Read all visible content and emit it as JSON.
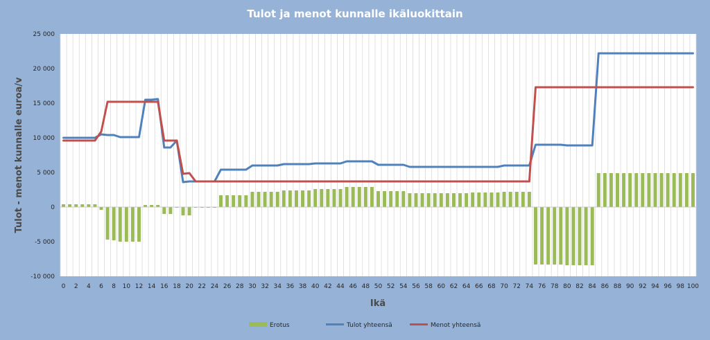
{
  "chart_data": {
    "type": "bar+line",
    "title": "Tulot ja menot kunnalle ikäluokittain",
    "xlabel": "Ikä",
    "ylabel": "Tulot - menot kunnalle euroa/v",
    "ylim": [
      -10000,
      25000
    ],
    "ytick_step": 5000,
    "y_tick_labels": [
      "-10 000",
      "-5 000",
      "0",
      "5 000",
      "10 000",
      "15 000",
      "20 000",
      "25 000"
    ],
    "x_tick_step": 2,
    "x": [
      0,
      1,
      2,
      3,
      4,
      5,
      6,
      7,
      8,
      9,
      10,
      11,
      12,
      13,
      14,
      15,
      16,
      17,
      18,
      19,
      20,
      21,
      22,
      23,
      24,
      25,
      26,
      27,
      28,
      29,
      30,
      31,
      32,
      33,
      34,
      35,
      36,
      37,
      38,
      39,
      40,
      41,
      42,
      43,
      44,
      45,
      46,
      47,
      48,
      49,
      50,
      51,
      52,
      53,
      54,
      55,
      56,
      57,
      58,
      59,
      60,
      61,
      62,
      63,
      64,
      65,
      66,
      67,
      68,
      69,
      70,
      71,
      72,
      73,
      74,
      75,
      76,
      77,
      78,
      79,
      80,
      81,
      82,
      83,
      84,
      85,
      86,
      87,
      88,
      89,
      90,
      91,
      92,
      93,
      94,
      95,
      96,
      97,
      98,
      99,
      100
    ],
    "grid": "vertical",
    "legend_position": "bottom",
    "series": [
      {
        "name": "Erotus",
        "type": "bar",
        "color": "#9bbb59",
        "values": [
          400,
          400,
          400,
          400,
          400,
          400,
          -400,
          -4700,
          -4800,
          -5000,
          -5000,
          -5000,
          -5000,
          300,
          300,
          300,
          -1000,
          -1000,
          -100,
          -1200,
          -1200,
          -100,
          -100,
          -100,
          -100,
          1700,
          1700,
          1700,
          1700,
          1700,
          2200,
          2200,
          2200,
          2200,
          2200,
          2400,
          2400,
          2400,
          2400,
          2400,
          2600,
          2600,
          2600,
          2600,
          2600,
          2900,
          2900,
          2900,
          2900,
          2900,
          2300,
          2300,
          2300,
          2300,
          2300,
          2000,
          2000,
          2000,
          2000,
          2000,
          2000,
          2000,
          2000,
          2000,
          2000,
          2100,
          2100,
          2100,
          2100,
          2100,
          2200,
          2200,
          2200,
          2200,
          2200,
          -8300,
          -8300,
          -8300,
          -8300,
          -8300,
          -8400,
          -8400,
          -8400,
          -8400,
          -8400,
          4900,
          4900,
          4900,
          4900,
          4900,
          4900,
          4900,
          4900,
          4900,
          4900,
          4900,
          4900,
          4900,
          4900,
          4900,
          4900
        ]
      },
      {
        "name": "Tulot yhteensä",
        "type": "line",
        "color": "#4f81bd",
        "values": [
          10000,
          10000,
          10000,
          10000,
          10000,
          10000,
          10500,
          10400,
          10400,
          10100,
          10100,
          10100,
          10100,
          15500,
          15500,
          15600,
          8600,
          8600,
          9600,
          3600,
          3700,
          3700,
          3700,
          3700,
          3700,
          5400,
          5400,
          5400,
          5400,
          5400,
          6000,
          6000,
          6000,
          6000,
          6000,
          6200,
          6200,
          6200,
          6200,
          6200,
          6300,
          6300,
          6300,
          6300,
          6300,
          6600,
          6600,
          6600,
          6600,
          6600,
          6100,
          6100,
          6100,
          6100,
          6100,
          5800,
          5800,
          5800,
          5800,
          5800,
          5800,
          5800,
          5800,
          5800,
          5800,
          5800,
          5800,
          5800,
          5800,
          5800,
          6000,
          6000,
          6000,
          6000,
          6000,
          9000,
          9000,
          9000,
          9000,
          9000,
          8900,
          8900,
          8900,
          8900,
          8900,
          22200,
          22200,
          22200,
          22200,
          22200,
          22200,
          22200,
          22200,
          22200,
          22200,
          22200,
          22200,
          22200,
          22200,
          22200,
          22200
        ]
      },
      {
        "name": "Menot yhteensä",
        "type": "line",
        "color": "#c0504d",
        "values": [
          9600,
          9600,
          9600,
          9600,
          9600,
          9600,
          10900,
          15200,
          15200,
          15200,
          15200,
          15200,
          15200,
          15200,
          15200,
          15200,
          9600,
          9600,
          9600,
          4800,
          4900,
          3700,
          3700,
          3700,
          3700,
          3700,
          3700,
          3700,
          3700,
          3700,
          3700,
          3700,
          3700,
          3700,
          3700,
          3700,
          3700,
          3700,
          3700,
          3700,
          3700,
          3700,
          3700,
          3700,
          3700,
          3700,
          3700,
          3700,
          3700,
          3700,
          3700,
          3700,
          3700,
          3700,
          3700,
          3700,
          3700,
          3700,
          3700,
          3700,
          3700,
          3700,
          3700,
          3700,
          3700,
          3700,
          3700,
          3700,
          3700,
          3700,
          3700,
          3700,
          3700,
          3700,
          3700,
          17300,
          17300,
          17300,
          17300,
          17300,
          17300,
          17300,
          17300,
          17300,
          17300,
          17300,
          17300,
          17300,
          17300,
          17300,
          17300,
          17300,
          17300,
          17300,
          17300,
          17300,
          17300,
          17300,
          17300,
          17300,
          17300
        ]
      }
    ]
  }
}
